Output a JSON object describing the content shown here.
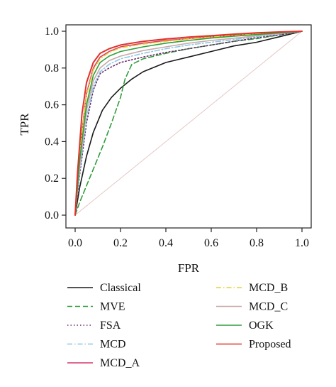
{
  "chart_data": {
    "type": "line",
    "title": "",
    "xlabel": "FPR",
    "ylabel": "TPR",
    "xlim": [
      0,
      1
    ],
    "ylim": [
      0,
      1
    ],
    "xticks": [
      "0.0",
      "0.2",
      "0.4",
      "0.6",
      "0.8",
      "1.0"
    ],
    "yticks": [
      "0.0",
      "0.2",
      "0.4",
      "0.6",
      "0.8",
      "1.0"
    ],
    "grid": false,
    "legend_position": "bottom",
    "reference_line": {
      "from": [
        0,
        0
      ],
      "to": [
        1,
        1
      ],
      "color": "#e6c6c6"
    },
    "series": [
      {
        "name": "Classical",
        "color": "#1a1a1a",
        "dash": "solid",
        "x": [
          0,
          0.02,
          0.05,
          0.08,
          0.12,
          0.16,
          0.2,
          0.25,
          0.3,
          0.4,
          0.5,
          0.6,
          0.7,
          0.8,
          0.9,
          1.0
        ],
        "y": [
          0,
          0.15,
          0.32,
          0.45,
          0.57,
          0.64,
          0.69,
          0.74,
          0.78,
          0.83,
          0.86,
          0.89,
          0.92,
          0.94,
          0.97,
          1.0
        ]
      },
      {
        "name": "MVE",
        "color": "#2e9e3a",
        "dash": "dashed",
        "x": [
          0,
          0.02,
          0.05,
          0.08,
          0.12,
          0.16,
          0.2,
          0.22,
          0.25,
          0.3,
          0.4,
          0.5,
          0.6,
          0.7,
          0.8,
          0.9,
          1.0
        ],
        "y": [
          0,
          0.07,
          0.16,
          0.25,
          0.37,
          0.5,
          0.64,
          0.74,
          0.82,
          0.85,
          0.88,
          0.905,
          0.925,
          0.945,
          0.96,
          0.98,
          1.0
        ]
      },
      {
        "name": "FSA",
        "color": "#6b2a6b",
        "dash": "dotted",
        "x": [
          0,
          0.02,
          0.05,
          0.08,
          0.11,
          0.15,
          0.2,
          0.3,
          0.4,
          0.5,
          0.6,
          0.7,
          0.8,
          0.9,
          1.0
        ],
        "y": [
          0,
          0.22,
          0.5,
          0.68,
          0.77,
          0.8,
          0.83,
          0.86,
          0.885,
          0.905,
          0.925,
          0.945,
          0.965,
          0.98,
          1.0
        ]
      },
      {
        "name": "MCD",
        "color": "#8ec6e6",
        "dash": "dashdot",
        "x": [
          0,
          0.02,
          0.05,
          0.08,
          0.11,
          0.15,
          0.2,
          0.3,
          0.4,
          0.5,
          0.6,
          0.7,
          0.8,
          0.9,
          1.0
        ],
        "y": [
          0,
          0.24,
          0.53,
          0.7,
          0.78,
          0.82,
          0.85,
          0.88,
          0.905,
          0.925,
          0.94,
          0.955,
          0.97,
          0.985,
          1.0
        ]
      },
      {
        "name": "MCD_A",
        "color": "#d63a6a",
        "dash": "solid",
        "x": [
          0,
          0.02,
          0.05,
          0.08,
          0.11,
          0.15,
          0.2,
          0.3,
          0.4,
          0.5,
          0.6,
          0.7,
          0.8,
          0.9,
          1.0
        ],
        "y": [
          0,
          0.35,
          0.66,
          0.8,
          0.86,
          0.89,
          0.915,
          0.935,
          0.95,
          0.96,
          0.97,
          0.978,
          0.986,
          0.993,
          1.0
        ]
      },
      {
        "name": "MCD_B",
        "color": "#e6d23a",
        "dash": "dashdot",
        "x": [
          0,
          0.02,
          0.05,
          0.08,
          0.11,
          0.15,
          0.2,
          0.3,
          0.4,
          0.5,
          0.6,
          0.7,
          0.8,
          0.9,
          1.0
        ],
        "y": [
          0,
          0.34,
          0.65,
          0.79,
          0.85,
          0.885,
          0.91,
          0.93,
          0.945,
          0.958,
          0.968,
          0.977,
          0.985,
          0.993,
          1.0
        ]
      },
      {
        "name": "MCD_C",
        "color": "#c9a8a8",
        "dash": "solid",
        "x": [
          0,
          0.02,
          0.05,
          0.08,
          0.11,
          0.15,
          0.2,
          0.3,
          0.4,
          0.5,
          0.6,
          0.7,
          0.8,
          0.9,
          1.0
        ],
        "y": [
          0,
          0.27,
          0.57,
          0.73,
          0.8,
          0.84,
          0.865,
          0.895,
          0.915,
          0.935,
          0.95,
          0.962,
          0.975,
          0.988,
          1.0
        ]
      },
      {
        "name": "OGK",
        "color": "#2e9e3a",
        "dash": "solid",
        "x": [
          0,
          0.02,
          0.05,
          0.08,
          0.11,
          0.15,
          0.2,
          0.3,
          0.4,
          0.5,
          0.6,
          0.7,
          0.8,
          0.9,
          1.0
        ],
        "y": [
          0,
          0.3,
          0.6,
          0.76,
          0.83,
          0.865,
          0.89,
          0.915,
          0.935,
          0.95,
          0.963,
          0.973,
          0.982,
          0.991,
          1.0
        ]
      },
      {
        "name": "Proposed",
        "color": "#e0322a",
        "dash": "solid",
        "x": [
          0,
          0.01,
          0.03,
          0.05,
          0.08,
          0.11,
          0.15,
          0.2,
          0.3,
          0.4,
          0.5,
          0.6,
          0.7,
          0.8,
          0.9,
          1.0
        ],
        "y": [
          0,
          0.22,
          0.55,
          0.72,
          0.83,
          0.88,
          0.905,
          0.925,
          0.945,
          0.958,
          0.968,
          0.976,
          0.984,
          0.991,
          0.996,
          1.0
        ]
      }
    ]
  }
}
